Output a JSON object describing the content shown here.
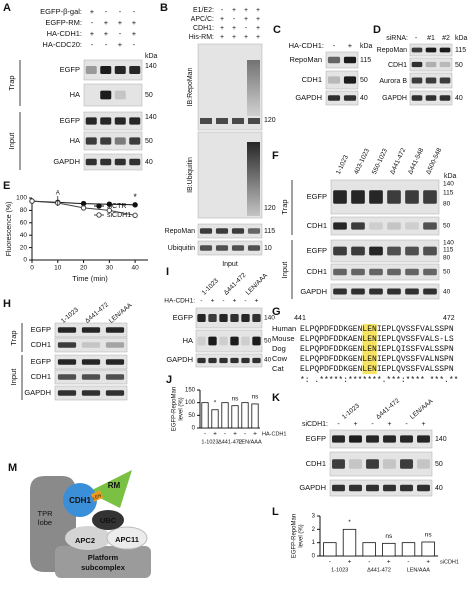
{
  "panels": {
    "A": {
      "label": "A",
      "conditions": [
        {
          "name": "EGFP-β-gal:",
          "signs": [
            "+",
            "-",
            "-",
            "-"
          ]
        },
        {
          "name": "EGFP-RM:",
          "signs": [
            "-",
            "+",
            "+",
            "+"
          ]
        },
        {
          "name": "HA-CDH1:",
          "signs": [
            "+",
            "+",
            "-",
            "+"
          ]
        },
        {
          "name": "HA-CDC20:",
          "signs": [
            "-",
            "-",
            "+",
            "-"
          ]
        }
      ],
      "unit": "kDa",
      "groups": [
        "Trap",
        "Input"
      ],
      "blots": [
        "EGFP",
        "HA",
        "EGFP",
        "HA",
        "GAPDH"
      ],
      "markers": [
        140,
        50,
        140,
        50,
        40
      ]
    },
    "B": {
      "label": "B",
      "conditions": [
        {
          "name": "E1/E2:",
          "signs": [
            "-",
            "+",
            "+",
            "+"
          ]
        },
        {
          "name": "APC/C:",
          "signs": [
            "+",
            "-",
            "+",
            "+"
          ]
        },
        {
          "name": "CDH1:",
          "signs": [
            "+",
            "+",
            "-",
            "+"
          ]
        },
        {
          "name": "His-RM:",
          "signs": [
            "+",
            "+",
            "+",
            "+"
          ]
        }
      ],
      "probes": [
        "IB:RepoMan",
        "IB:Ubiquitin"
      ],
      "probe_markers": [
        120,
        120
      ],
      "blots": [
        "RepoMan",
        "Ubiquitin"
      ],
      "markers": [
        115,
        10
      ],
      "group": "Input"
    },
    "C": {
      "label": "C",
      "conditions": [
        {
          "name": "HA-CDH1:",
          "signs": [
            "-",
            "+"
          ]
        }
      ],
      "unit": "kDa",
      "blots": [
        "RepoMan",
        "CDH1",
        "GAPDH"
      ],
      "markers": [
        115,
        50,
        40
      ]
    },
    "D": {
      "label": "D",
      "conditions": [
        {
          "name": "siRNA:",
          "signs": [
            "-",
            "#1",
            "#2"
          ]
        }
      ],
      "unit": "kDa",
      "blots": [
        "RepoMan",
        "CDH1",
        "Aurora B",
        "GAPDH"
      ],
      "markers": [
        115,
        50,
        40
      ]
    },
    "E": {
      "label": "E",
      "chart": {
        "type": "line",
        "ylabel": "Fluorescence (%)",
        "xlabel": "Time (min)",
        "x": [
          0,
          10,
          20,
          30,
          40
        ],
        "xlim": [
          0,
          45
        ],
        "xticks": [
          0,
          10,
          20,
          30,
          40
        ],
        "ylim": [
          0,
          100
        ],
        "yticks": [
          0,
          20,
          40,
          60,
          80,
          100
        ],
        "series": [
          {
            "name": "siCTR",
            "color": "#111111",
            "values": [
              95,
              93,
              91,
              90,
              89
            ]
          },
          {
            "name": "siCDH1",
            "color": "#444444",
            "values": [
              95,
              92,
              84,
              80,
              72
            ]
          }
        ],
        "annotations": [
          "A",
          "*"
        ]
      }
    },
    "F": {
      "label": "F",
      "lanes": [
        "1-1023",
        "403-1023",
        "550-1023",
        "Δ441-472",
        "Δ441-548",
        "Δ500-548"
      ],
      "unit": "kDa",
      "groups": [
        "Trap",
        "Input"
      ],
      "blots": [
        "EGFP",
        "CDH1",
        "EGFP",
        "CDH1",
        "GAPDH"
      ],
      "markers": [
        140,
        115,
        80,
        50,
        140,
        115,
        80,
        50,
        40
      ]
    },
    "G": {
      "label": "G",
      "positions": [
        441,
        472
      ],
      "species": [
        {
          "name": "Human",
          "seq": "ELPQPDFDDKGENLENIEPLQVSSFVALSSPN"
        },
        {
          "name": "Mouse",
          "seq": "ELPQPDFDDKAENLENIEPLQVSSFVALS-LS"
        },
        {
          "name": "Dog",
          "seq": "ELPQPDFDDKGENLENIEPLQISSFVALSSPN"
        },
        {
          "name": "Cow",
          "seq": "ELPQPDFDDKGENLENIEPLQVSSFVALNSPN"
        },
        {
          "name": "Cat",
          "seq": "ELPQPDFDDKGENLENIEPLQVSSFVALSSPN"
        }
      ],
      "consensus": "*: .*****:*******.***:**** ***.**"
    },
    "H": {
      "label": "H",
      "lanes": [
        "1-1023",
        "Δ441-472",
        "LEN/AAA"
      ],
      "groups": [
        "Trap",
        "Input"
      ],
      "blots": [
        "EGFP",
        "CDH1",
        "EGFP",
        "CDH1",
        "GAPDH"
      ]
    },
    "I": {
      "label": "I",
      "lanes": [
        "1-1023",
        "Δ441-472",
        "LEN/AAA"
      ],
      "conditions": [
        {
          "name": "HA-CDH1:",
          "signs": [
            "-",
            "+",
            "-",
            "+",
            "-",
            "+"
          ]
        }
      ],
      "blots": [
        "EGFP",
        "HA",
        "GAPDH"
      ],
      "markers": [
        140,
        50,
        40
      ]
    },
    "J": {
      "label": "J",
      "chart": {
        "type": "bar",
        "ylabel": [
          "EGFP-RepoMan",
          "level (%)"
        ],
        "categories": [
          "-",
          "+",
          "-",
          "+",
          "-",
          "+"
        ],
        "groups": [
          "1-1023",
          "Δ441-472",
          "LEN/AAA"
        ],
        "condition": "HA-CDH1",
        "values": [
          100,
          72,
          100,
          88,
          100,
          95
        ],
        "ylim": [
          0,
          150
        ],
        "yticks": [
          0,
          50,
          100,
          150
        ],
        "annotations": [
          "*",
          "ns",
          "ns"
        ]
      }
    },
    "K": {
      "label": "K",
      "lanes": [
        "1-1023",
        "Δ441-472",
        "LEN/AAA"
      ],
      "conditions": [
        {
          "name": "siCDH1:",
          "signs": [
            "-",
            "+",
            "-",
            "+",
            "-",
            "+"
          ]
        }
      ],
      "blots": [
        "EGFP",
        "CDH1",
        "GAPDH"
      ],
      "markers": [
        140,
        50,
        40
      ]
    },
    "L": {
      "label": "L",
      "chart": {
        "type": "bar",
        "ylabel": [
          "EGFP-RepoMan",
          "level (%)"
        ],
        "categories": [
          "-",
          "+",
          "-",
          "+",
          "-",
          "+"
        ],
        "groups": [
          "1-1023",
          "Δ441-472",
          "LEN/AAA"
        ],
        "condition": "siCDH1",
        "values": [
          1,
          2.0,
          1,
          0.95,
          1,
          1.05
        ],
        "ylim": [
          0,
          3
        ],
        "yticks": [
          0,
          1,
          2,
          3
        ],
        "annotations": [
          "*",
          "ns",
          "ns"
        ]
      }
    },
    "M": {
      "label": "M",
      "parts": {
        "tpr": [
          "TPR",
          "lobe"
        ],
        "cdh1": "CDH1",
        "rm": "RM",
        "len": "LEN",
        "ubc": "UBC",
        "apc2": "APC2",
        "apc11": "APC11",
        "platform": [
          "Platform",
          "subcomplex"
        ]
      }
    }
  }
}
